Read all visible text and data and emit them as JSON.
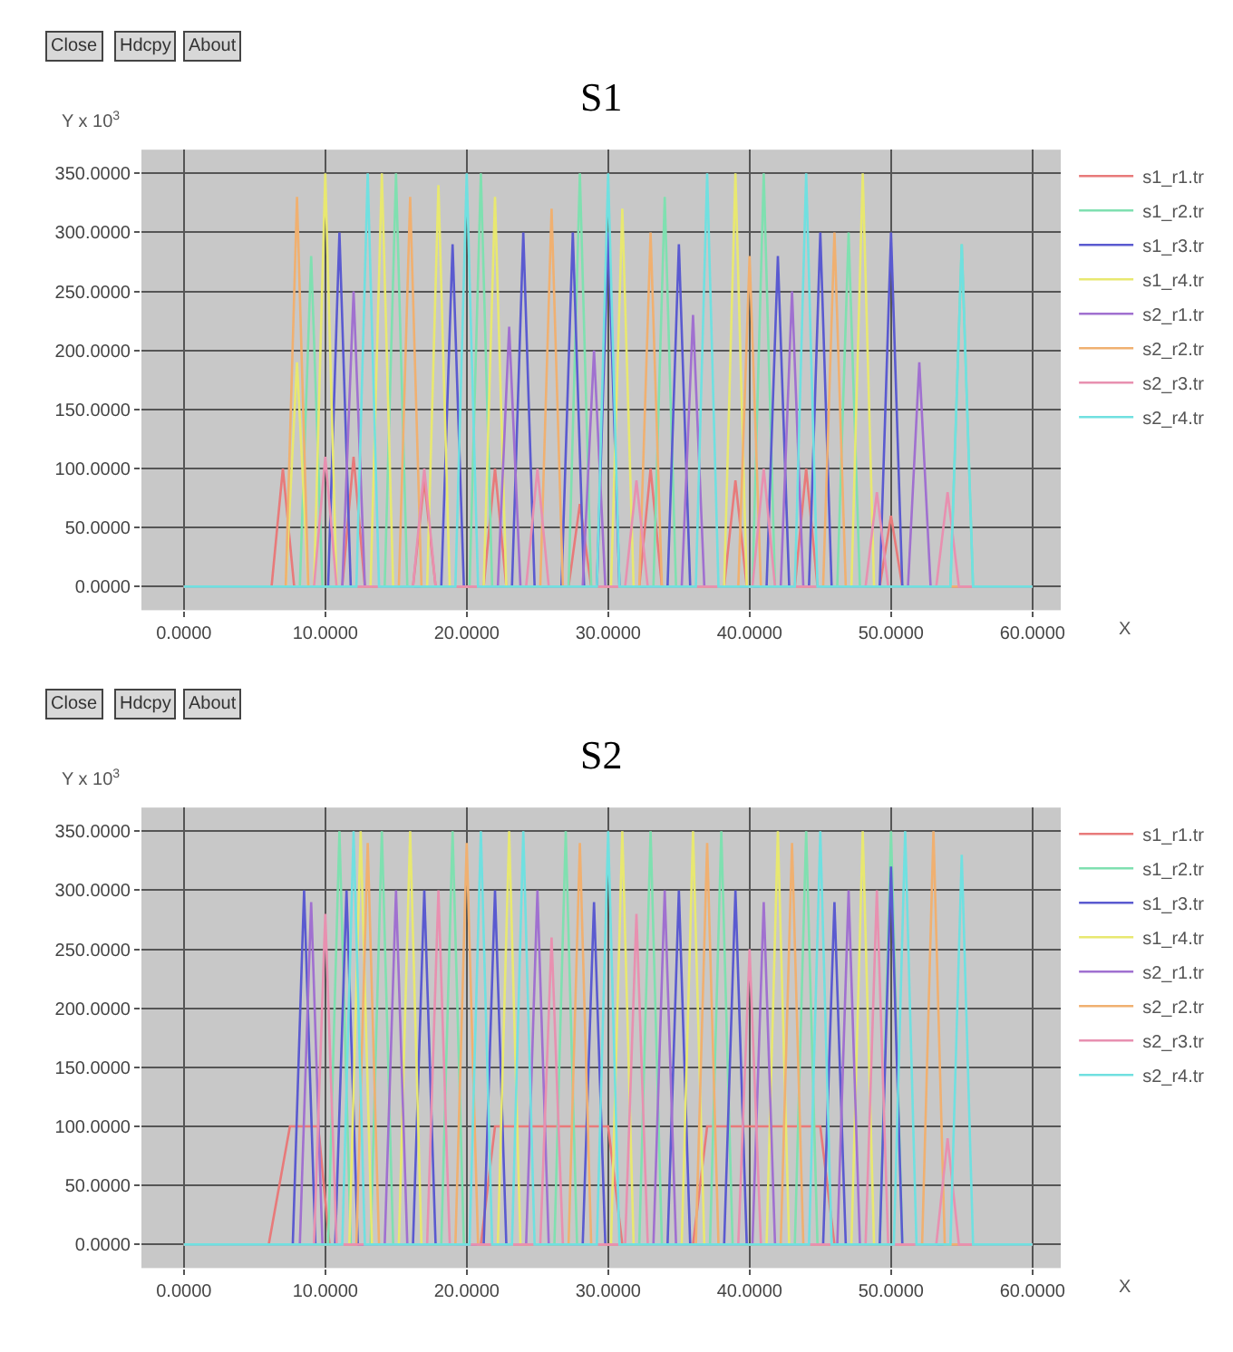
{
  "chart_data": [
    {
      "type": "line",
      "title": "S1",
      "xlabel": "X",
      "ylabel": "Y x 10$^{3}$",
      "annotations": [
        "Close",
        "Hdcpy",
        "About"
      ],
      "xlim": [
        -3,
        62
      ],
      "ylim": [
        -20,
        370
      ],
      "xticks": [
        {
          "value": 0,
          "label": "0.0000"
        },
        {
          "value": 10,
          "label": "10.0000"
        },
        {
          "value": 20,
          "label": "20.0000"
        },
        {
          "value": 30,
          "label": "30.0000"
        },
        {
          "value": 40,
          "label": "40.0000"
        },
        {
          "value": 50,
          "label": "50.0000"
        },
        {
          "value": 60,
          "label": "60.0000"
        }
      ],
      "yticks": [
        {
          "value": 0,
          "label": "0.0000"
        },
        {
          "value": 50,
          "label": "50.0000"
        },
        {
          "value": 100,
          "label": "100.0000"
        },
        {
          "value": 150,
          "label": "150.0000"
        },
        {
          "value": 200,
          "label": "200.0000"
        },
        {
          "value": 250,
          "label": "250.0000"
        },
        {
          "value": 300,
          "label": "300.0000"
        },
        {
          "value": 350,
          "label": "350.0000"
        }
      ],
      "grid": true,
      "legend": "top right",
      "marker": "none",
      "line_style": "solid",
      "series": [
        {
          "name": "s1_r1.tr",
          "color": "#e87a7a",
          "x": [
            0,
            6.2,
            7,
            7.8,
            11.2,
            12,
            12.8,
            16.2,
            17,
            17.8,
            21.2,
            22,
            22.8,
            27.2,
            28,
            28.8,
            32.2,
            33,
            33.8,
            38.2,
            39,
            39.8,
            43.2,
            44,
            44.8,
            49.2,
            50,
            50.8,
            60
          ],
          "values": [
            0,
            0,
            100,
            0,
            0,
            110,
            0,
            0,
            90,
            0,
            0,
            100,
            0,
            0,
            70,
            0,
            0,
            100,
            0,
            0,
            90,
            0,
            0,
            100,
            0,
            0,
            60,
            0,
            0
          ]
        },
        {
          "name": "s1_r2.tr",
          "color": "#7fe0b0",
          "x": [
            0,
            8.2,
            9,
            9.8,
            14.2,
            15,
            15.8,
            20.2,
            21,
            21.8,
            27.2,
            28,
            28.8,
            33.2,
            34,
            34.8,
            40.2,
            41,
            41.8,
            46.2,
            47,
            47.8,
            54.2,
            55,
            55.8,
            60
          ],
          "values": [
            0,
            0,
            280,
            0,
            0,
            350,
            0,
            0,
            350,
            0,
            0,
            350,
            0,
            0,
            330,
            0,
            0,
            350,
            0,
            0,
            300,
            0,
            0,
            290,
            0,
            0
          ]
        },
        {
          "name": "s1_r3.tr",
          "color": "#5a5ad0",
          "x": [
            0,
            10.2,
            11,
            11.8,
            18.2,
            19,
            19.8,
            23.2,
            24,
            24.8,
            26.7,
            27.5,
            28.3,
            29.2,
            30,
            30.8,
            34.2,
            35,
            35.8,
            41.2,
            42,
            42.8,
            44.2,
            45,
            45.8,
            49.2,
            50,
            50.8,
            60
          ],
          "values": [
            0,
            0,
            300,
            0,
            0,
            290,
            0,
            0,
            300,
            0,
            0,
            300,
            0,
            0,
            300,
            0,
            0,
            290,
            0,
            0,
            280,
            0,
            0,
            300,
            0,
            0,
            300,
            0,
            0
          ]
        },
        {
          "name": "s1_r4.tr",
          "color": "#e8e870",
          "x": [
            0,
            7.2,
            8,
            8.8,
            9.2,
            10,
            10.8,
            13.2,
            14,
            14.8,
            17.2,
            18,
            18.8,
            21.2,
            22,
            22.8,
            30.2,
            31,
            31.8,
            38.2,
            39,
            39.8,
            47.2,
            48,
            48.8,
            60
          ],
          "values": [
            0,
            0,
            190,
            0,
            0,
            350,
            0,
            0,
            350,
            0,
            0,
            340,
            0,
            0,
            330,
            0,
            0,
            320,
            0,
            0,
            350,
            0,
            0,
            350,
            0,
            0
          ]
        },
        {
          "name": "s2_r1.tr",
          "color": "#a070d0",
          "x": [
            0,
            11.2,
            12,
            12.8,
            22.2,
            23,
            23.8,
            28.2,
            29,
            29.8,
            35.2,
            36,
            36.8,
            42.2,
            43,
            43.8,
            51.2,
            52,
            52.8,
            60
          ],
          "values": [
            0,
            0,
            250,
            0,
            0,
            220,
            0,
            0,
            200,
            0,
            0,
            230,
            0,
            0,
            250,
            0,
            0,
            190,
            0,
            0
          ]
        },
        {
          "name": "s2_r2.tr",
          "color": "#f0b070",
          "x": [
            0,
            7.2,
            8,
            8.8,
            15.2,
            16,
            16.8,
            25.2,
            26,
            26.8,
            32.2,
            33,
            33.8,
            39.2,
            40,
            40.8,
            45.2,
            46,
            46.8,
            60
          ],
          "values": [
            0,
            0,
            330,
            0,
            0,
            330,
            0,
            0,
            320,
            0,
            0,
            300,
            0,
            0,
            280,
            0,
            0,
            300,
            0,
            0
          ]
        },
        {
          "name": "s2_r3.tr",
          "color": "#e890b0",
          "x": [
            0,
            9.2,
            10,
            10.8,
            16.2,
            17,
            17.8,
            24.2,
            25,
            25.8,
            31.2,
            32,
            32.8,
            40.2,
            41,
            41.8,
            48.2,
            49,
            49.8,
            53.2,
            54,
            54.8,
            60
          ],
          "values": [
            0,
            0,
            110,
            0,
            0,
            100,
            0,
            0,
            100,
            0,
            0,
            90,
            0,
            0,
            100,
            0,
            0,
            80,
            0,
            0,
            80,
            0,
            0
          ]
        },
        {
          "name": "s2_r4.tr",
          "color": "#70e0e0",
          "x": [
            0,
            12.2,
            13,
            13.8,
            19.2,
            20,
            20.8,
            29.2,
            30,
            30.8,
            36.2,
            37,
            37.8,
            43.2,
            44,
            44.8,
            54.2,
            55,
            55.8,
            60
          ],
          "values": [
            0,
            0,
            350,
            0,
            0,
            350,
            0,
            0,
            350,
            0,
            0,
            350,
            0,
            0,
            350,
            0,
            0,
            290,
            0,
            0
          ]
        }
      ]
    },
    {
      "type": "line",
      "title": "S2",
      "xlabel": "X",
      "ylabel": "Y x 10$^{3}$",
      "annotations": [
        "Close",
        "Hdcpy",
        "About"
      ],
      "xlim": [
        -3,
        62
      ],
      "ylim": [
        -20,
        370
      ],
      "xticks": [
        {
          "value": 0,
          "label": "0.0000"
        },
        {
          "value": 10,
          "label": "10.0000"
        },
        {
          "value": 20,
          "label": "20.0000"
        },
        {
          "value": 30,
          "label": "30.0000"
        },
        {
          "value": 40,
          "label": "40.0000"
        },
        {
          "value": 50,
          "label": "50.0000"
        },
        {
          "value": 60,
          "label": "60.0000"
        }
      ],
      "yticks": [
        {
          "value": 0,
          "label": "0.0000"
        },
        {
          "value": 50,
          "label": "50.0000"
        },
        {
          "value": 100,
          "label": "100.0000"
        },
        {
          "value": 150,
          "label": "150.0000"
        },
        {
          "value": 200,
          "label": "200.0000"
        },
        {
          "value": 250,
          "label": "250.0000"
        },
        {
          "value": 300,
          "label": "300.0000"
        },
        {
          "value": 350,
          "label": "350.0000"
        }
      ],
      "grid": true,
      "legend": "top right",
      "marker": "none",
      "line_style": "solid",
      "series": [
        {
          "name": "s1_r1.tr",
          "color": "#e87a7a",
          "x": [
            0,
            6,
            7.5,
            9.5,
            10.3,
            21,
            22,
            30,
            31,
            36,
            37,
            45,
            46,
            60
          ],
          "values": [
            0,
            0,
            100,
            100,
            0,
            0,
            100,
            100,
            0,
            0,
            100,
            100,
            0,
            0
          ]
        },
        {
          "name": "s1_r2.tr",
          "color": "#7fe0b0",
          "x": [
            0,
            10.2,
            11,
            11.8,
            13.2,
            14,
            14.8,
            18.2,
            19,
            19.8,
            26.2,
            27,
            27.8,
            32.2,
            33,
            33.8,
            37.2,
            38,
            38.8,
            43.2,
            44,
            44.8,
            49.2,
            50,
            50.8,
            60
          ],
          "values": [
            0,
            0,
            350,
            0,
            0,
            350,
            0,
            0,
            350,
            0,
            0,
            350,
            0,
            0,
            350,
            0,
            0,
            350,
            0,
            0,
            350,
            0,
            0,
            350,
            0,
            0
          ]
        },
        {
          "name": "s1_r3.tr",
          "color": "#5a5ad0",
          "x": [
            0,
            7.7,
            8.5,
            9.3,
            10.7,
            11.5,
            12.3,
            16.2,
            17,
            17.8,
            21.2,
            22,
            22.8,
            28.2,
            29,
            29.8,
            34.2,
            35,
            35.8,
            38.2,
            39,
            39.8,
            45.2,
            46,
            46.8,
            49.2,
            50,
            50.8,
            60
          ],
          "values": [
            0,
            0,
            300,
            0,
            0,
            300,
            0,
            0,
            300,
            0,
            0,
            300,
            0,
            0,
            290,
            0,
            0,
            300,
            0,
            0,
            300,
            0,
            0,
            290,
            0,
            0,
            320,
            0,
            0
          ]
        },
        {
          "name": "s1_r4.tr",
          "color": "#e8e870",
          "x": [
            0,
            11.7,
            12.5,
            13.3,
            15.2,
            16,
            16.8,
            22.2,
            23,
            23.8,
            30.2,
            31,
            31.8,
            35.2,
            36,
            36.8,
            41.2,
            42,
            42.8,
            47.2,
            48,
            48.8,
            60
          ],
          "values": [
            0,
            0,
            350,
            0,
            0,
            350,
            0,
            0,
            350,
            0,
            0,
            350,
            0,
            0,
            350,
            0,
            0,
            350,
            0,
            0,
            350,
            0,
            0
          ]
        },
        {
          "name": "s2_r1.tr",
          "color": "#a070d0",
          "x": [
            0,
            8.2,
            9,
            9.8,
            14.2,
            15,
            15.8,
            24.2,
            25,
            25.8,
            33.2,
            34,
            34.8,
            40.2,
            41,
            41.8,
            46.2,
            47,
            47.8,
            60
          ],
          "values": [
            0,
            0,
            290,
            0,
            0,
            300,
            0,
            0,
            300,
            0,
            0,
            300,
            0,
            0,
            290,
            0,
            0,
            300,
            0,
            0
          ]
        },
        {
          "name": "s2_r2.tr",
          "color": "#f0b070",
          "x": [
            0,
            12.2,
            13,
            13.8,
            19.2,
            20,
            20.8,
            27.2,
            28,
            28.8,
            36.2,
            37,
            37.8,
            42.2,
            43,
            43.8,
            52.2,
            53,
            53.8,
            60
          ],
          "values": [
            0,
            0,
            340,
            0,
            0,
            340,
            0,
            0,
            340,
            0,
            0,
            340,
            0,
            0,
            340,
            0,
            0,
            350,
            0,
            0
          ]
        },
        {
          "name": "s2_r3.tr",
          "color": "#e890b0",
          "x": [
            0,
            9.2,
            10,
            10.8,
            17.2,
            18,
            18.8,
            25.2,
            26,
            26.8,
            31.2,
            32,
            32.8,
            39.2,
            40,
            40.8,
            48.2,
            49,
            49.8,
            53.2,
            54,
            54.8,
            60
          ],
          "values": [
            0,
            0,
            280,
            0,
            0,
            300,
            0,
            0,
            260,
            0,
            0,
            280,
            0,
            0,
            250,
            0,
            0,
            300,
            0,
            0,
            90,
            0,
            0
          ]
        },
        {
          "name": "s2_r4.tr",
          "color": "#70e0e0",
          "x": [
            0,
            11.2,
            12,
            12.8,
            20.2,
            21,
            21.8,
            23.2,
            24,
            24.8,
            29.2,
            30,
            30.8,
            44.2,
            45,
            45.8,
            50.2,
            51,
            51.8,
            54.2,
            55,
            55.8,
            60
          ],
          "values": [
            0,
            0,
            350,
            0,
            0,
            350,
            0,
            0,
            350,
            0,
            0,
            350,
            0,
            0,
            350,
            0,
            0,
            350,
            0,
            0,
            330,
            0,
            0
          ]
        }
      ]
    }
  ]
}
